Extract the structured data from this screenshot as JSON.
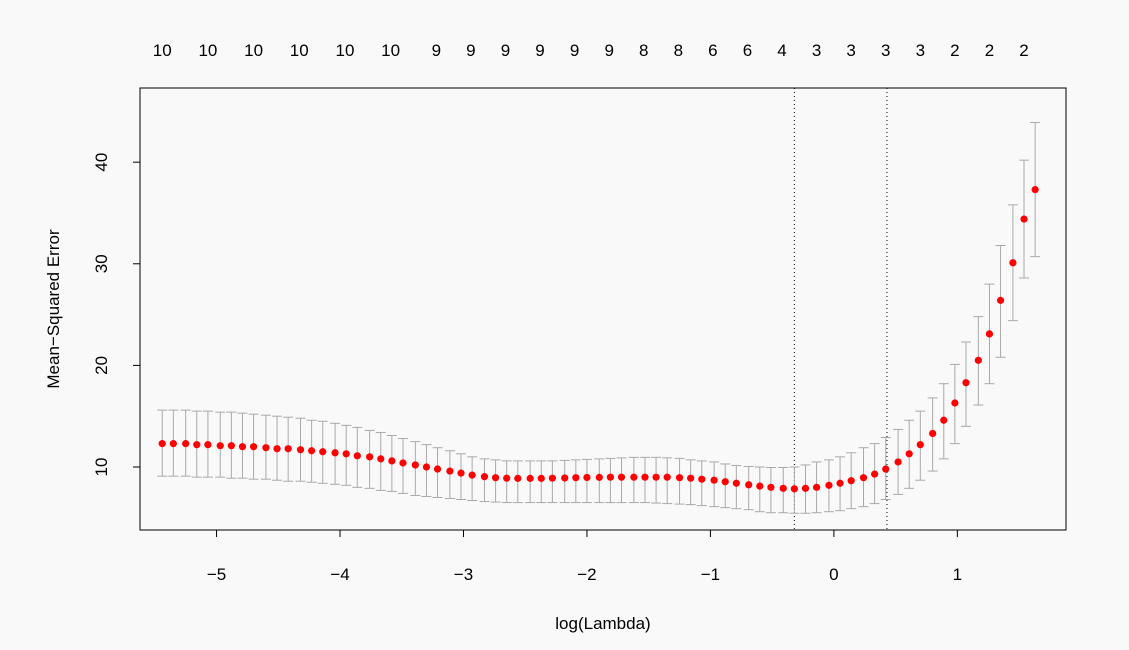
{
  "chart_data": {
    "type": "scatter",
    "title": "",
    "xlabel": "log(Lambda)",
    "ylabel": "Mean−Squared Error",
    "xlim": [
      -5.62,
      1.88
    ],
    "ylim": [
      3.8,
      47.3
    ],
    "x_ticks": [
      {
        "value": -5,
        "label": "−5"
      },
      {
        "value": -4,
        "label": "−4"
      },
      {
        "value": -3,
        "label": "−3"
      },
      {
        "value": -2,
        "label": "−2"
      },
      {
        "value": -1,
        "label": "−1"
      },
      {
        "value": 0,
        "label": "0"
      },
      {
        "value": 1,
        "label": "1"
      }
    ],
    "y_ticks": [
      {
        "value": 10,
        "label": "10"
      },
      {
        "value": 20,
        "label": "20"
      },
      {
        "value": 30,
        "label": "30"
      },
      {
        "value": 40,
        "label": "40"
      }
    ],
    "top_axis": [
      {
        "x": -5.44,
        "label": "10"
      },
      {
        "x": -5.07,
        "label": "10"
      },
      {
        "x": -4.7,
        "label": "10"
      },
      {
        "x": -4.33,
        "label": "10"
      },
      {
        "x": -3.96,
        "label": "10"
      },
      {
        "x": -3.59,
        "label": "10"
      },
      {
        "x": -3.22,
        "label": "9"
      },
      {
        "x": -2.94,
        "label": "9"
      },
      {
        "x": -2.66,
        "label": "9"
      },
      {
        "x": -2.38,
        "label": "9"
      },
      {
        "x": -2.1,
        "label": "9"
      },
      {
        "x": -1.82,
        "label": "9"
      },
      {
        "x": -1.54,
        "label": "8"
      },
      {
        "x": -1.26,
        "label": "8"
      },
      {
        "x": -0.98,
        "label": "6"
      },
      {
        "x": -0.7,
        "label": "6"
      },
      {
        "x": -0.42,
        "label": "4"
      },
      {
        "x": -0.14,
        "label": "3"
      },
      {
        "x": 0.14,
        "label": "3"
      },
      {
        "x": 0.42,
        "label": "3"
      },
      {
        "x": 0.7,
        "label": "3"
      },
      {
        "x": 0.98,
        "label": "2"
      },
      {
        "x": 1.26,
        "label": "2"
      },
      {
        "x": 1.54,
        "label": "2"
      }
    ],
    "vlines": [
      -0.32,
      0.43
    ],
    "x": [
      -5.44,
      -5.35,
      -5.25,
      -5.16,
      -5.07,
      -4.97,
      -4.88,
      -4.79,
      -4.7,
      -4.6,
      -4.51,
      -4.42,
      -4.32,
      -4.23,
      -4.14,
      -4.04,
      -3.95,
      -3.86,
      -3.76,
      -3.67,
      -3.58,
      -3.49,
      -3.39,
      -3.3,
      -3.21,
      -3.11,
      -3.02,
      -2.93,
      -2.83,
      -2.74,
      -2.65,
      -2.56,
      -2.46,
      -2.37,
      -2.28,
      -2.18,
      -2.09,
      -2.0,
      -1.9,
      -1.81,
      -1.72,
      -1.62,
      -1.53,
      -1.44,
      -1.35,
      -1.25,
      -1.16,
      -1.07,
      -0.97,
      -0.88,
      -0.79,
      -0.69,
      -0.6,
      -0.51,
      -0.41,
      -0.32,
      -0.23,
      -0.14,
      -0.04,
      0.05,
      0.14,
      0.24,
      0.33,
      0.42,
      0.52,
      0.61,
      0.7,
      0.8,
      0.89,
      0.98,
      1.07,
      1.17,
      1.26,
      1.35,
      1.45,
      1.54,
      1.63
    ],
    "y": [
      12.3,
      12.3,
      12.3,
      12.2,
      12.2,
      12.1,
      12.1,
      12.0,
      12.0,
      11.9,
      11.8,
      11.8,
      11.7,
      11.6,
      11.5,
      11.4,
      11.3,
      11.1,
      11.0,
      10.8,
      10.6,
      10.4,
      10.2,
      10.0,
      9.8,
      9.6,
      9.4,
      9.2,
      9.05,
      8.95,
      8.9,
      8.88,
      8.88,
      8.88,
      8.9,
      8.92,
      8.95,
      8.97,
      8.98,
      9.0,
      9.0,
      9.0,
      9.0,
      9.0,
      9.0,
      8.95,
      8.9,
      8.8,
      8.7,
      8.55,
      8.4,
      8.25,
      8.12,
      8.0,
      7.9,
      7.85,
      7.9,
      8.0,
      8.2,
      8.4,
      8.65,
      8.95,
      9.3,
      9.8,
      10.5,
      11.3,
      12.2,
      13.3,
      14.6,
      16.3,
      18.3,
      20.5,
      23.1,
      26.4,
      30.1,
      34.4,
      37.3
    ],
    "y_upper": [
      15.6,
      15.6,
      15.6,
      15.5,
      15.5,
      15.4,
      15.4,
      15.3,
      15.2,
      15.1,
      15.0,
      14.9,
      14.8,
      14.6,
      14.5,
      14.3,
      14.1,
      13.9,
      13.6,
      13.4,
      13.1,
      12.8,
      12.5,
      12.2,
      11.9,
      11.6,
      11.3,
      11.0,
      10.8,
      10.7,
      10.6,
      10.6,
      10.6,
      10.6,
      10.6,
      10.65,
      10.7,
      10.75,
      10.8,
      10.85,
      10.9,
      10.95,
      10.95,
      10.95,
      10.9,
      10.85,
      10.7,
      10.6,
      10.5,
      10.3,
      10.15,
      10.05,
      10.0,
      9.95,
      9.95,
      10.0,
      10.2,
      10.5,
      10.7,
      11.0,
      11.4,
      11.9,
      12.3,
      12.9,
      13.7,
      14.6,
      15.5,
      16.8,
      18.2,
      20.1,
      22.3,
      24.8,
      28.0,
      31.8,
      35.8,
      40.2,
      43.9
    ],
    "y_lower": [
      9.1,
      9.1,
      9.1,
      9.0,
      9.0,
      9.0,
      8.9,
      8.9,
      8.8,
      8.8,
      8.7,
      8.6,
      8.6,
      8.5,
      8.4,
      8.3,
      8.2,
      8.0,
      7.9,
      7.7,
      7.6,
      7.4,
      7.2,
      7.1,
      7.0,
      6.9,
      6.8,
      6.7,
      6.6,
      6.55,
      6.5,
      6.5,
      6.5,
      6.5,
      6.5,
      6.5,
      6.5,
      6.5,
      6.5,
      6.5,
      6.5,
      6.5,
      6.5,
      6.45,
      6.4,
      6.35,
      6.3,
      6.2,
      6.1,
      6.0,
      5.9,
      5.8,
      5.6,
      5.5,
      5.5,
      5.45,
      5.45,
      5.5,
      5.6,
      5.7,
      5.9,
      6.1,
      6.4,
      6.8,
      7.3,
      7.9,
      8.7,
      9.6,
      10.8,
      12.3,
      14.0,
      16.1,
      18.2,
      20.8,
      24.4,
      28.6,
      30.7
    ]
  }
}
